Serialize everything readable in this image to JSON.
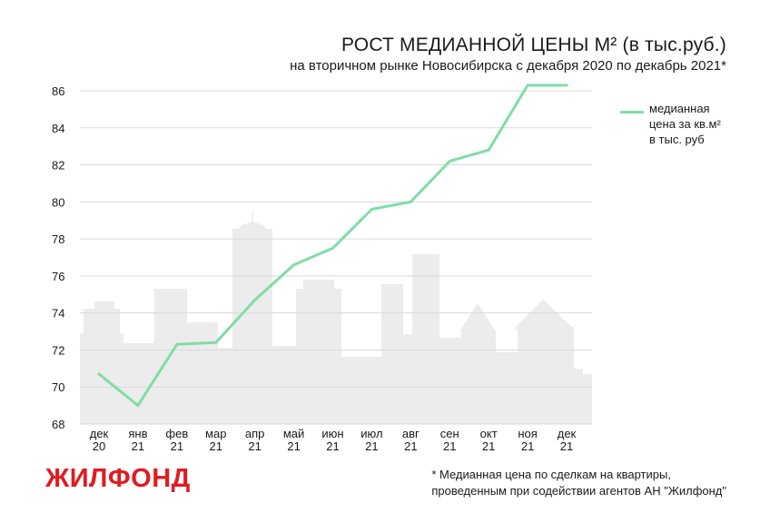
{
  "title": "РОСТ МЕДИАННОЙ ЦЕНЫ М² (в тыс.руб.)",
  "subtitle": "на вторичном рынке Новосибирска с декабря 2020 по декабрь 2021*",
  "legend": {
    "line1": "медианная",
    "line2": "цена за кв.м²",
    "line3": "в тыс. руб"
  },
  "logo": "ЖИЛФОНД",
  "footnote": {
    "line1": "* Медианная цена по сделкам на квартиры,",
    "line2": "проведенным при содействии агентов АН \"Жилфонд\""
  },
  "colors": {
    "line": "#7fdda6",
    "grid": "#d9d9d9",
    "skyline": "#ececec",
    "brand": "#e11b22"
  },
  "chart_data": {
    "type": "line",
    "title": "РОСТ МЕДИАННОЙ ЦЕНЫ М² (в тыс.руб.)",
    "subtitle": "на вторичном рынке Новосибирска с декабря 2020 по декабрь 2021*",
    "categories": [
      [
        "дек",
        "20"
      ],
      [
        "янв",
        "21"
      ],
      [
        "фев",
        "21"
      ],
      [
        "мар",
        "21"
      ],
      [
        "апр",
        "21"
      ],
      [
        "май",
        "21"
      ],
      [
        "июн",
        "21"
      ],
      [
        "июл",
        "21"
      ],
      [
        "авг",
        "21"
      ],
      [
        "сен",
        "21"
      ],
      [
        "окт",
        "21"
      ],
      [
        "ноя",
        "21"
      ],
      [
        "дек",
        "21"
      ]
    ],
    "series": [
      {
        "name": "медианная цена за кв.м² в тыс. руб",
        "values": [
          70.7,
          69.0,
          72.3,
          72.4,
          74.7,
          76.6,
          77.5,
          79.6,
          80.0,
          82.2,
          82.8,
          86.3,
          86.3
        ]
      }
    ],
    "yticks": [
      "86",
      "84",
      "82",
      "80",
      "78",
      "76",
      "74",
      "72",
      "70",
      "68"
    ],
    "ylim": [
      68,
      87
    ],
    "grid": true,
    "legend_position": "right"
  }
}
